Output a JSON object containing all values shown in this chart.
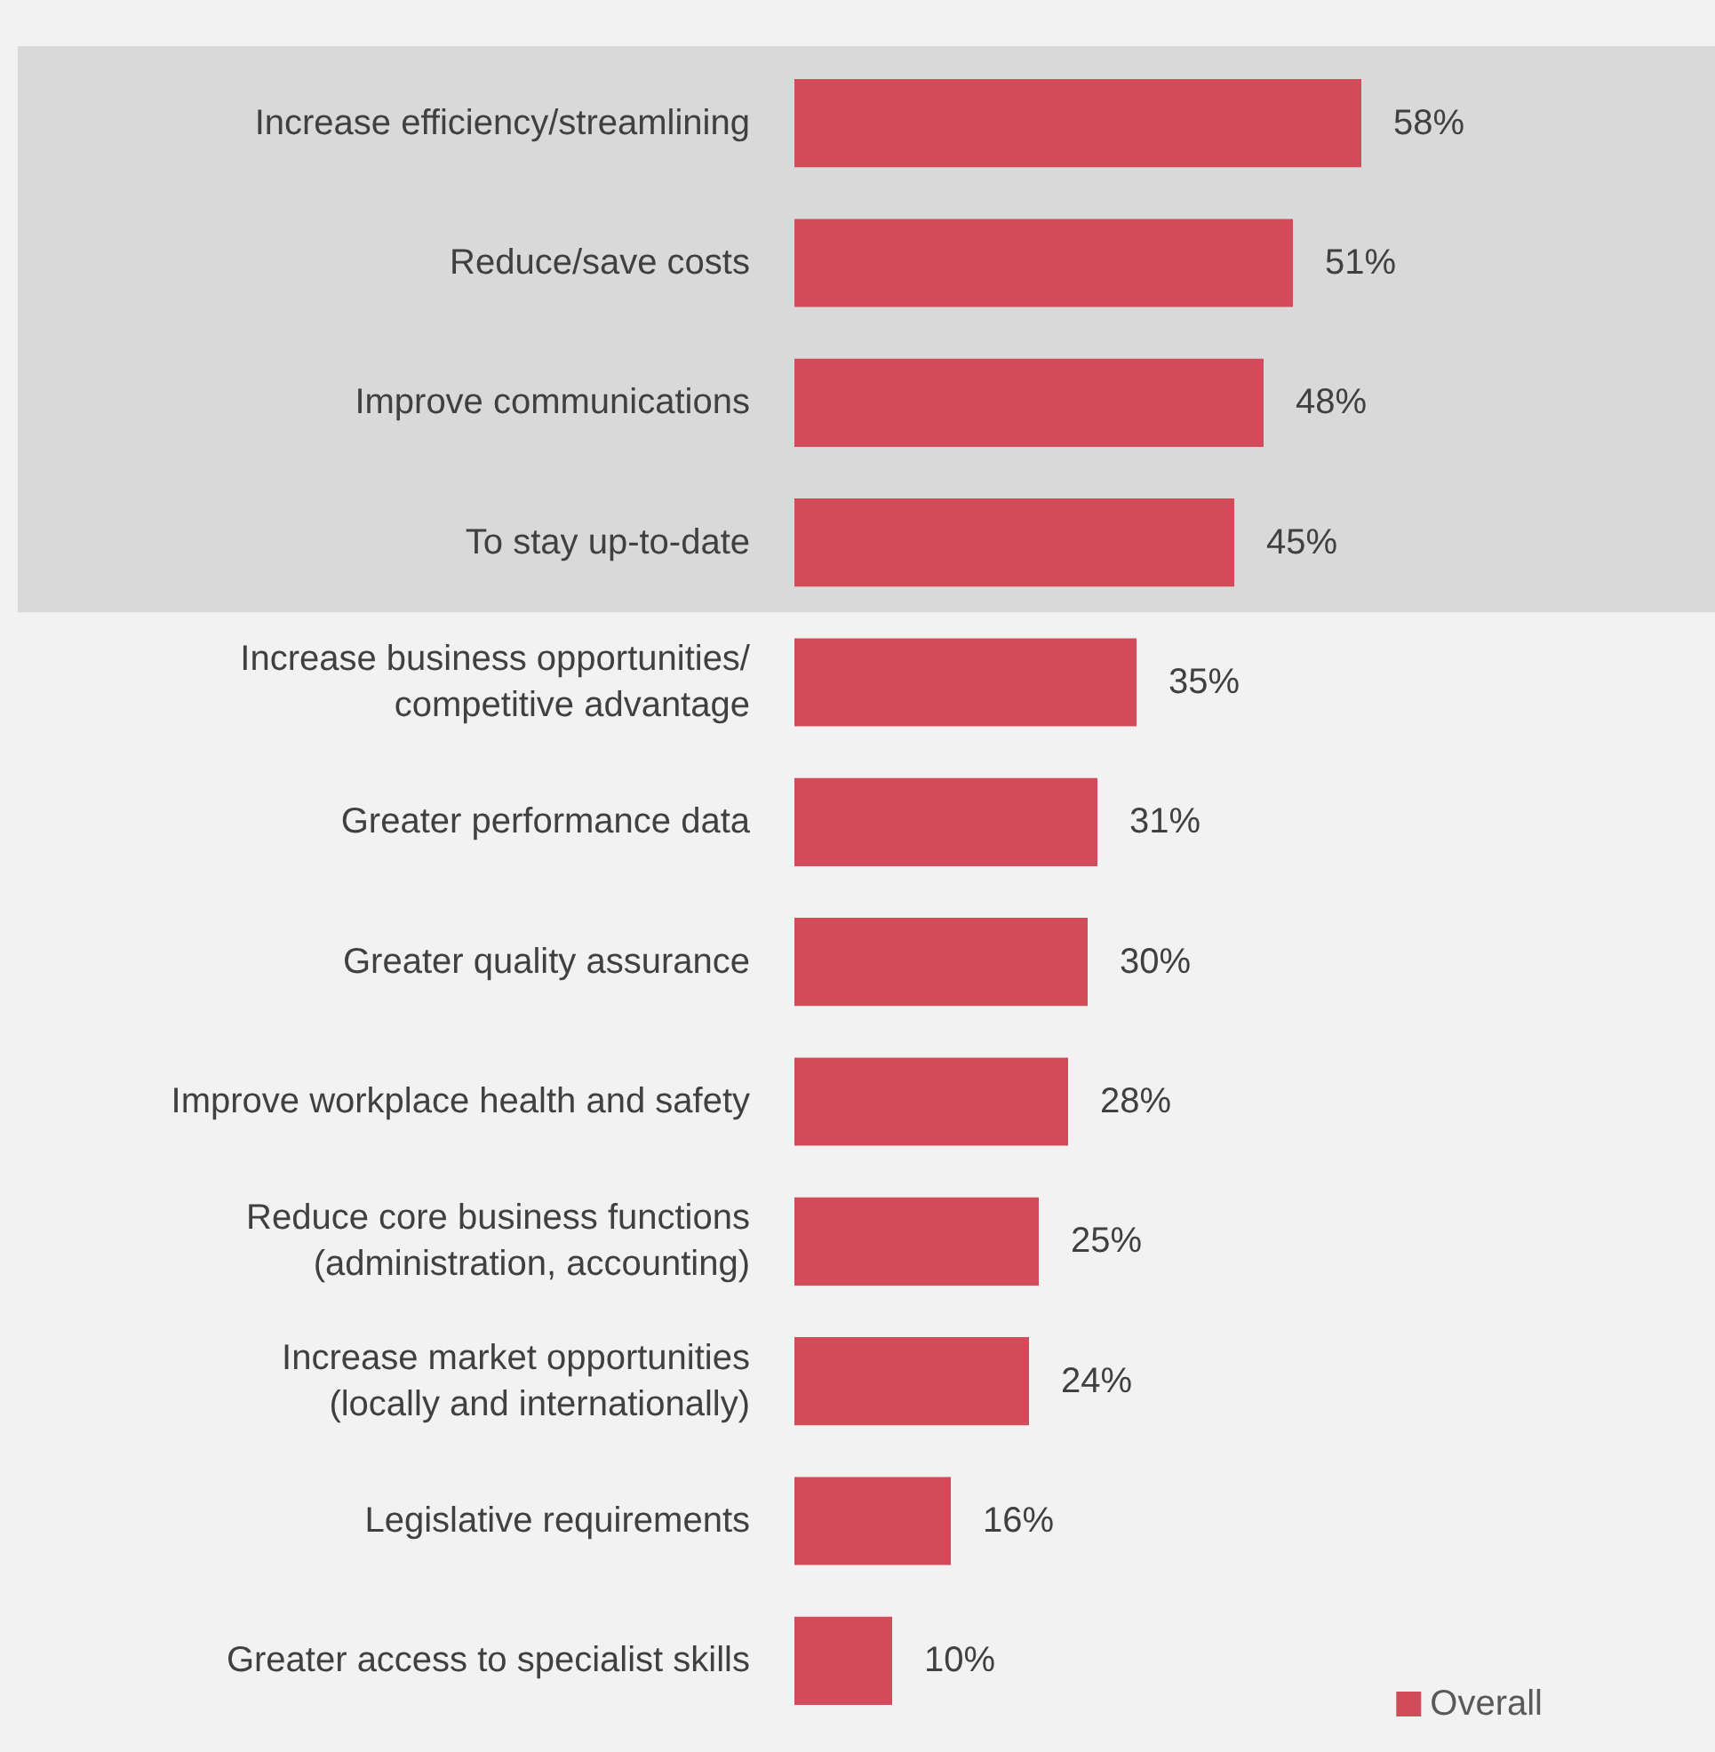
{
  "chart_data": {
    "type": "bar",
    "orientation": "horizontal",
    "categories": [
      "Increase efficiency/streamlining",
      "Reduce/save costs",
      "Improve communications",
      "To stay up-to-date",
      "Increase business opportunities/\ncompetitive advantage",
      "Greater performance data",
      "Greater quality assurance",
      "Improve workplace health and safety",
      "Reduce core business functions\n(administration, accounting)",
      "Increase market opportunities\n(locally and internationally)",
      "Legislative requirements",
      "Greater access to specialist skills"
    ],
    "series": [
      {
        "name": "Overall",
        "color": "#d24b5a",
        "values": [
          58,
          51,
          48,
          45,
          35,
          31,
          30,
          28,
          25,
          24,
          16,
          10
        ],
        "value_labels": [
          "58%",
          "51%",
          "48%",
          "45%",
          "35%",
          "31%",
          "30%",
          "28%",
          "25%",
          "24%",
          "16%",
          "10%"
        ]
      }
    ],
    "bands": [
      {
        "axis": "y",
        "from": "Increase efficiency/streamlining",
        "to": "To stay up-to-date",
        "color": "#d9d9d9"
      }
    ],
    "legend": "bottom right",
    "grid": false
  }
}
